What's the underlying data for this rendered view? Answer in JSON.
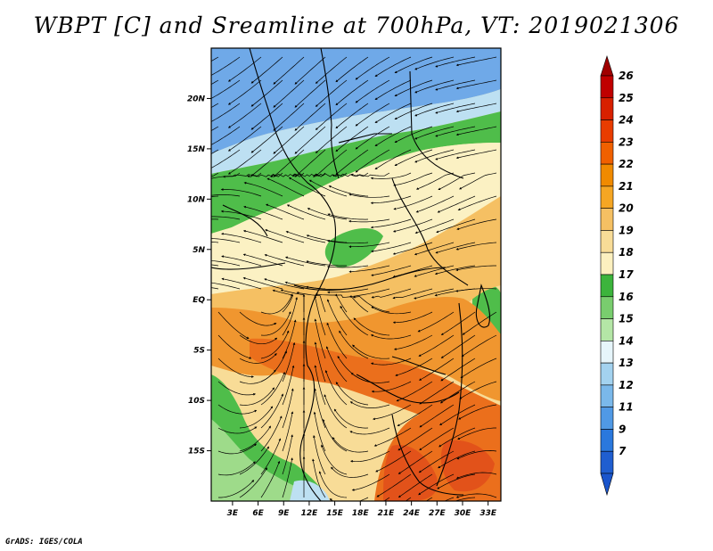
{
  "title": "WBPT [C] and Sreamline at 700hPa, VT: 2019021306",
  "footer": "GrADS: IGES/COLA",
  "axes": {
    "lon_labels": [
      "3E",
      "6E",
      "9E",
      "12E",
      "15E",
      "18E",
      "21E",
      "24E",
      "27E",
      "30E",
      "33E"
    ],
    "lon_values": [
      3,
      6,
      9,
      12,
      15,
      18,
      21,
      24,
      27,
      30,
      33
    ],
    "lat_labels": [
      "20N",
      "15N",
      "10N",
      "5N",
      "EQ",
      "5S",
      "10S",
      "15S"
    ],
    "lat_values": [
      20,
      15,
      10,
      5,
      0,
      -5,
      -10,
      -15
    ],
    "lon_range": [
      0.5,
      34.5
    ],
    "lat_range": [
      -20,
      25
    ]
  },
  "colorbar": {
    "labels": [
      "26",
      "25",
      "24",
      "23",
      "22",
      "21",
      "20",
      "19",
      "18",
      "17",
      "16",
      "15",
      "14",
      "13",
      "12",
      "11",
      "9",
      "7"
    ],
    "colors": [
      "#c00000",
      "#d82000",
      "#e83c00",
      "#f06000",
      "#f08a00",
      "#f5a623",
      "#f5c063",
      "#f8dc97",
      "#fcf0bf",
      "#3cb43c",
      "#79cd6e",
      "#b4e6a6",
      "#e6f5fa",
      "#a3d2ef",
      "#7ab8ea",
      "#5099e5",
      "#2a78dd",
      "#1f5ed0"
    ],
    "top_arrow_color": "#a00000",
    "bottom_arrow_color": "#1a55cc"
  },
  "field_palette": {
    "blue": "#6fa9e8",
    "light_blue": "#bde0f2",
    "light_green": "#9edb8a",
    "green": "#4fbd4a",
    "pale_yellow": "#fbf1c3",
    "yellow": "#f8dc97",
    "light_orange": "#f5c063",
    "orange": "#f0962f",
    "dark_orange": "#eb6f1c",
    "red_orange": "#e2521a"
  }
}
